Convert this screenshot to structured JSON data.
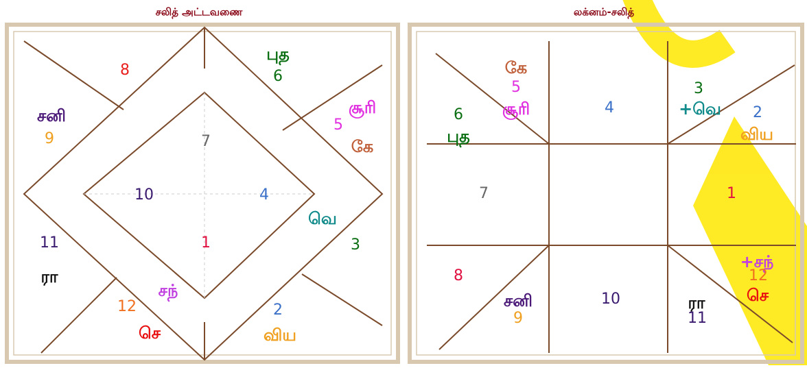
{
  "charts": [
    {
      "title": "சலித் அட்டவணை",
      "labels": [
        {
          "text": "8",
          "color": "#e8201e"
        },
        {
          "text": "புத",
          "color": "#0a6e12"
        },
        {
          "text": "6",
          "color": "#0a6e12"
        },
        {
          "text": "சனி",
          "color": "#4b1a78"
        },
        {
          "text": "9",
          "color": "#f0a020"
        },
        {
          "text": "சூரி",
          "color": "#e030e0"
        },
        {
          "text": "5",
          "color": "#e030e0"
        },
        {
          "text": "கே",
          "color": "#c0603a"
        },
        {
          "text": "7",
          "color": "#666666"
        },
        {
          "text": "10",
          "color": "#3a1a6e"
        },
        {
          "text": "4",
          "color": "#3a70c8"
        },
        {
          "text": "வெ",
          "color": "#108a8a"
        },
        {
          "text": "11",
          "color": "#3a1a6e"
        },
        {
          "text": "ரா",
          "color": "#111111"
        },
        {
          "text": "1",
          "color": "#e01040"
        },
        {
          "text": "3",
          "color": "#0a6e12"
        },
        {
          "text": "சந்",
          "color": "#c040e0"
        },
        {
          "text": "12",
          "color": "#f07020"
        },
        {
          "text": "செ",
          "color": "#e81010"
        },
        {
          "text": "2",
          "color": "#3a70c8"
        },
        {
          "text": "விய",
          "color": "#f0a020"
        }
      ]
    },
    {
      "title": "லக்னம்-சலித்",
      "labels": [
        {
          "text": "கே",
          "color": "#c0603a"
        },
        {
          "text": "5",
          "color": "#e030e0"
        },
        {
          "text": "சூரி",
          "color": "#e030e0"
        },
        {
          "text": "4",
          "color": "#3a70c8"
        },
        {
          "text": "3",
          "color": "#0a6e12"
        },
        {
          "text": "+வெ",
          "color": "#108a8a"
        },
        {
          "text": "6",
          "color": "#0a6e12"
        },
        {
          "text": "புத",
          "color": "#0a6e12"
        },
        {
          "text": "2",
          "color": "#3a70c8"
        },
        {
          "text": "விய",
          "color": "#f0a020"
        },
        {
          "text": "7",
          "color": "#666666"
        },
        {
          "text": "1",
          "color": "#e01040"
        },
        {
          "text": "8",
          "color": "#e01040"
        },
        {
          "text": "+சந்",
          "color": "#c040e0"
        },
        {
          "text": "12",
          "color": "#f07020"
        },
        {
          "text": "செ",
          "color": "#e81010"
        },
        {
          "text": "சனி",
          "color": "#4b1a78"
        },
        {
          "text": "9",
          "color": "#f0a020"
        },
        {
          "text": "10",
          "color": "#3a1a6e"
        },
        {
          "text": "ரா",
          "color": "#111111"
        },
        {
          "text": "11",
          "color": "#3a1a6e"
        }
      ]
    }
  ]
}
